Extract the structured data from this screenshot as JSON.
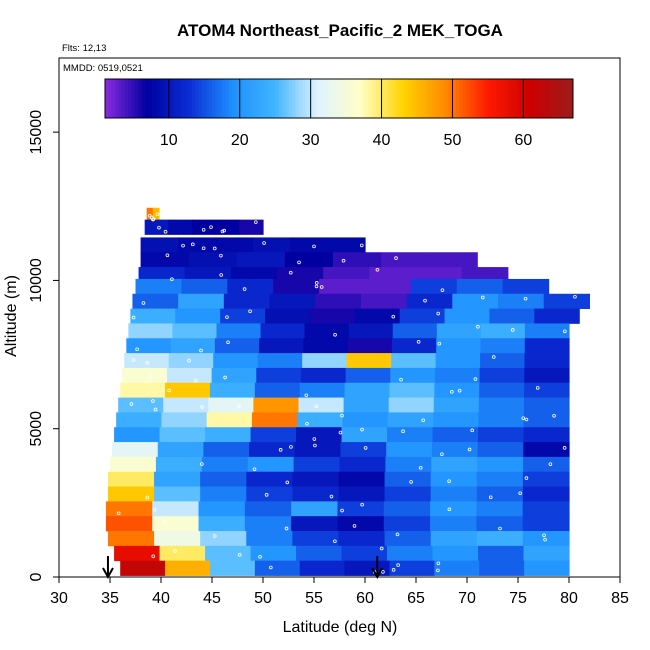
{
  "chart_data": {
    "type": "heatmap",
    "title": "ATOM4 Northeast_Pacific_2 MEK_TOGA",
    "flights_text": "Flts: 12,13",
    "dates_text": "MMDD: 0519,0521",
    "xlabel": "Latitude (deg N)",
    "ylabel": "Altitude (m)",
    "xlim": [
      30,
      85
    ],
    "ylim": [
      0,
      17500
    ],
    "x_ticks": [
      "30",
      "35",
      "40",
      "45",
      "50",
      "55",
      "60",
      "65",
      "70",
      "75",
      "80",
      "85"
    ],
    "y_ticks": [
      "0",
      "5000",
      "10000",
      "15000"
    ],
    "colorbar": {
      "range": [
        1,
        67
      ],
      "ticks": [
        "10",
        "20",
        "30",
        "40",
        "50",
        "60"
      ],
      "colors": [
        "#8a2be2",
        "#0000a0",
        "#0b2fd6",
        "#1e90ff",
        "#41b4ff",
        "#dff3ff",
        "#ffffc8",
        "#ffd400",
        "#ff8a00",
        "#ff1a00",
        "#cc0000",
        "#9b1c1c"
      ]
    },
    "arrows_latitude": [
      34.8,
      61.2
    ],
    "rows": [
      {
        "alt": 12200,
        "x0": 38.6,
        "x1": 39.8,
        "values": [
          50,
          45
        ]
      },
      {
        "alt": 11800,
        "x0": 38.4,
        "x1": 50,
        "values": [
          10,
          8,
          7,
          7,
          6
        ]
      },
      {
        "alt": 11200,
        "x0": 38.0,
        "x1": 60,
        "values": [
          9,
          8,
          8,
          9,
          8,
          8
        ]
      },
      {
        "alt": 10700,
        "x0": 38.0,
        "x1": 71,
        "values": [
          8,
          9,
          10,
          7,
          5,
          4,
          4
        ]
      },
      {
        "alt": 10200,
        "x0": 37.8,
        "x1": 74,
        "values": [
          12,
          10,
          8,
          6,
          4,
          3,
          3,
          4
        ]
      },
      {
        "alt": 9800,
        "x0": 37.5,
        "x1": 78,
        "values": [
          18,
          16,
          12,
          6,
          3,
          3,
          14,
          16,
          14
        ]
      },
      {
        "alt": 9300,
        "x0": 37.2,
        "x1": 82,
        "values": [
          16,
          22,
          12,
          10,
          5,
          4,
          12,
          20,
          18,
          14
        ]
      },
      {
        "alt": 8800,
        "x0": 37.0,
        "x1": 81,
        "values": [
          24,
          20,
          14,
          9,
          6,
          8,
          14,
          20,
          16,
          12
        ]
      },
      {
        "alt": 8300,
        "x0": 36.8,
        "x1": 80,
        "values": [
          28,
          26,
          18,
          12,
          8,
          10,
          16,
          22,
          24,
          18
        ]
      },
      {
        "alt": 7800,
        "x0": 36.6,
        "x1": 80,
        "values": [
          20,
          22,
          16,
          10,
          8,
          6,
          12,
          20,
          18,
          12
        ]
      },
      {
        "alt": 7300,
        "x0": 36.4,
        "x1": 80,
        "values": [
          30,
          28,
          20,
          18,
          28,
          44,
          26,
          20,
          16,
          12
        ]
      },
      {
        "alt": 6800,
        "x0": 36.2,
        "x1": 80,
        "values": [
          36,
          30,
          22,
          14,
          12,
          16,
          20,
          18,
          14,
          10
        ]
      },
      {
        "alt": 6300,
        "x0": 36.0,
        "x1": 80,
        "values": [
          38,
          44,
          24,
          16,
          18,
          22,
          26,
          20,
          16,
          14
        ]
      },
      {
        "alt": 5800,
        "x0": 35.8,
        "x1": 80,
        "values": [
          26,
          30,
          32,
          48,
          30,
          22,
          28,
          22,
          18,
          16
        ]
      },
      {
        "alt": 5300,
        "x0": 35.6,
        "x1": 80,
        "values": [
          24,
          28,
          38,
          50,
          24,
          20,
          22,
          20,
          18,
          16
        ]
      },
      {
        "alt": 4800,
        "x0": 35.4,
        "x1": 80,
        "values": [
          20,
          26,
          24,
          14,
          10,
          22,
          18,
          16,
          14,
          12
        ]
      },
      {
        "alt": 4300,
        "x0": 35.2,
        "x1": 80,
        "values": [
          32,
          22,
          16,
          12,
          10,
          14,
          20,
          18,
          16,
          8
        ]
      },
      {
        "alt": 3800,
        "x0": 35.0,
        "x1": 80,
        "values": [
          36,
          24,
          18,
          20,
          14,
          12,
          18,
          22,
          20,
          16
        ]
      },
      {
        "alt": 3300,
        "x0": 34.8,
        "x1": 80,
        "values": [
          40,
          22,
          16,
          12,
          10,
          8,
          16,
          20,
          18,
          14
        ]
      },
      {
        "alt": 2800,
        "x0": 34.8,
        "x1": 80,
        "values": [
          44,
          26,
          18,
          14,
          12,
          10,
          14,
          18,
          16,
          12
        ]
      },
      {
        "alt": 2300,
        "x0": 34.6,
        "x1": 80,
        "values": [
          50,
          30,
          20,
          16,
          22,
          14,
          16,
          20,
          18,
          14
        ]
      },
      {
        "alt": 1800,
        "x0": 34.6,
        "x1": 80,
        "values": [
          52,
          36,
          24,
          18,
          10,
          8,
          14,
          18,
          16,
          14
        ]
      },
      {
        "alt": 1300,
        "x0": 34.8,
        "x1": 80,
        "values": [
          50,
          34,
          28,
          18,
          14,
          12,
          16,
          22,
          24,
          20
        ]
      },
      {
        "alt": 800,
        "x0": 35.4,
        "x1": 80,
        "values": [
          58,
          40,
          26,
          20,
          16,
          14,
          18,
          20,
          16,
          22
        ]
      },
      {
        "alt": 300,
        "x0": 36.0,
        "x1": 80,
        "values": [
          62,
          46,
          26,
          16,
          12,
          10,
          14,
          18,
          16,
          20
        ]
      }
    ]
  }
}
